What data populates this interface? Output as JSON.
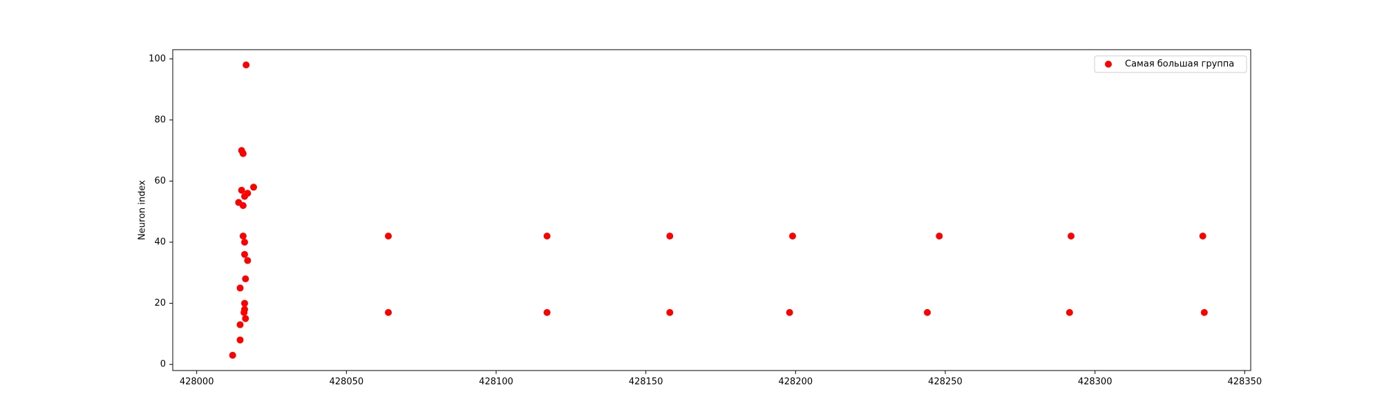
{
  "chart_data": {
    "type": "scatter",
    "ylabel": "Neuron index",
    "xlim": [
      427992,
      428352
    ],
    "ylim": [
      -2,
      103
    ],
    "x_ticks": [
      428000,
      428050,
      428100,
      428150,
      428200,
      428250,
      428300,
      428350
    ],
    "y_ticks": [
      0,
      20,
      40,
      60,
      80,
      100
    ],
    "grid": false,
    "legend_position": "top-right",
    "series": [
      {
        "name": "Самая большая группа",
        "color": "#ff0000",
        "marker": "circle",
        "points": [
          {
            "x": 428012,
            "y": 3
          },
          {
            "x": 428014,
            "y": 53
          },
          {
            "x": 428014.5,
            "y": 8
          },
          {
            "x": 428014.5,
            "y": 13
          },
          {
            "x": 428014.5,
            "y": 25
          },
          {
            "x": 428015,
            "y": 57
          },
          {
            "x": 428015,
            "y": 70
          },
          {
            "x": 428015.5,
            "y": 52
          },
          {
            "x": 428015.5,
            "y": 69
          },
          {
            "x": 428015.5,
            "y": 42
          },
          {
            "x": 428015.8,
            "y": 17
          },
          {
            "x": 428016,
            "y": 55
          },
          {
            "x": 428016,
            "y": 40
          },
          {
            "x": 428016,
            "y": 18
          },
          {
            "x": 428016,
            "y": 20
          },
          {
            "x": 428016,
            "y": 36
          },
          {
            "x": 428016.3,
            "y": 28
          },
          {
            "x": 428016.3,
            "y": 15
          },
          {
            "x": 428016.5,
            "y": 98
          },
          {
            "x": 428017,
            "y": 56
          },
          {
            "x": 428017,
            "y": 34
          },
          {
            "x": 428019,
            "y": 58
          },
          {
            "x": 428064,
            "y": 42
          },
          {
            "x": 428064,
            "y": 17
          },
          {
            "x": 428117,
            "y": 42
          },
          {
            "x": 428117,
            "y": 17
          },
          {
            "x": 428158,
            "y": 42
          },
          {
            "x": 428158,
            "y": 17
          },
          {
            "x": 428199,
            "y": 42
          },
          {
            "x": 428198,
            "y": 17
          },
          {
            "x": 428248,
            "y": 42
          },
          {
            "x": 428244,
            "y": 17
          },
          {
            "x": 428292,
            "y": 42
          },
          {
            "x": 428291.5,
            "y": 17
          },
          {
            "x": 428336,
            "y": 42
          },
          {
            "x": 428336.5,
            "y": 17
          }
        ]
      }
    ]
  }
}
